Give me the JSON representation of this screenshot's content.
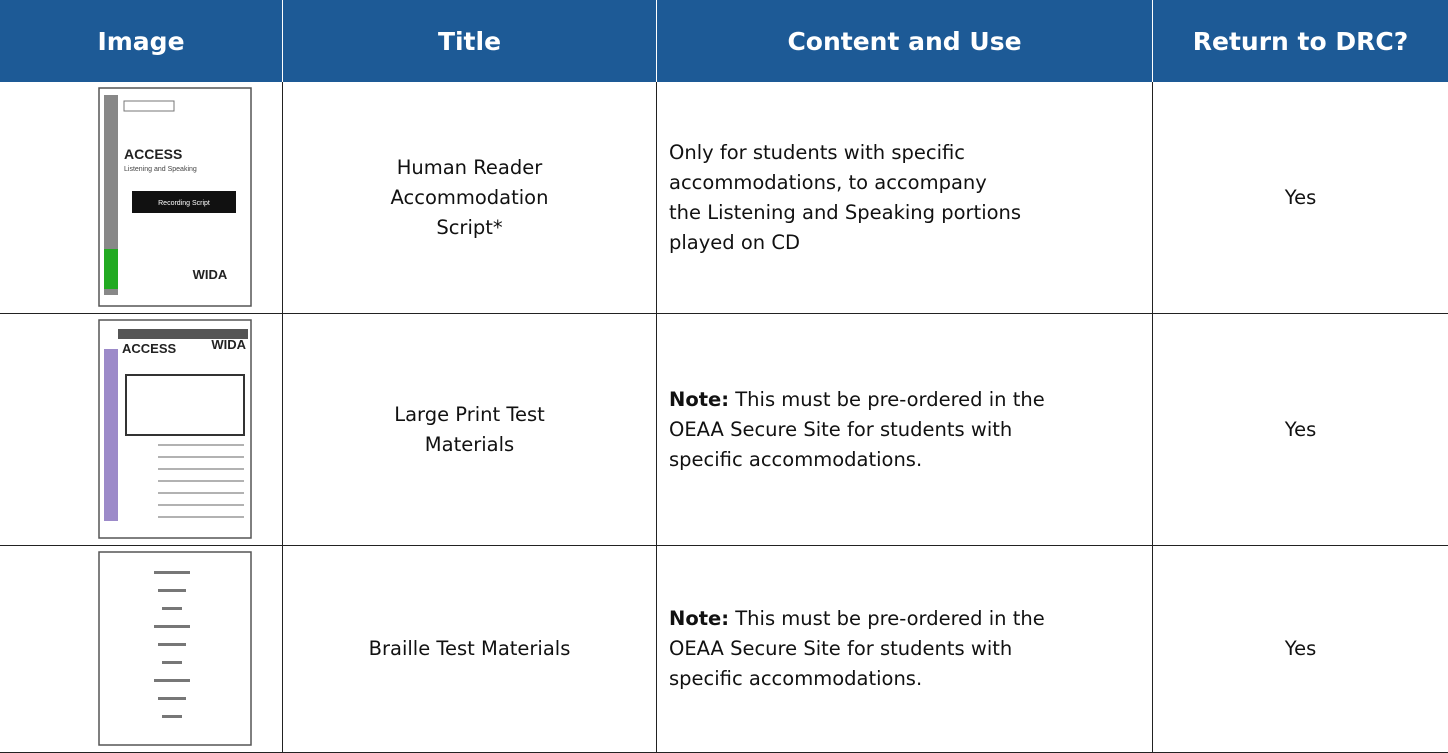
{
  "table": {
    "header": [
      "Image",
      "Title",
      "Content and Use",
      "Return to DRC?"
    ],
    "rows": [
      {
        "image_text": [
          "ACCESS",
          "Listening and Speaking",
          "Recording Script",
          "WIDA"
        ],
        "title": [
          "Human Reader",
          "Accommodation",
          "Script*"
        ],
        "content": {
          "lines": [
            "Only for students with specific",
            "accommodations, to accompany",
            "the Listening and Speaking portions",
            "played on CD"
          ]
        },
        "return": "Yes"
      },
      {
        "image_text": [
          "ACCESS",
          "WIDA"
        ],
        "title": [
          "Large Print Test",
          "Materials"
        ],
        "content": {
          "note": "Note:",
          "lines": [
            "This must be pre-ordered in the",
            "OEAA Secure Site for students with",
            "specific accommodations."
          ]
        },
        "return": "Yes"
      },
      {
        "image_text": [],
        "title": [
          "Braille Test Materials"
        ],
        "content": {
          "note": "Note:",
          "lines": [
            "This must be pre-ordered in the",
            "OEAA Secure Site for students with",
            "specific accommodations."
          ]
        },
        "return": "Yes"
      }
    ]
  }
}
